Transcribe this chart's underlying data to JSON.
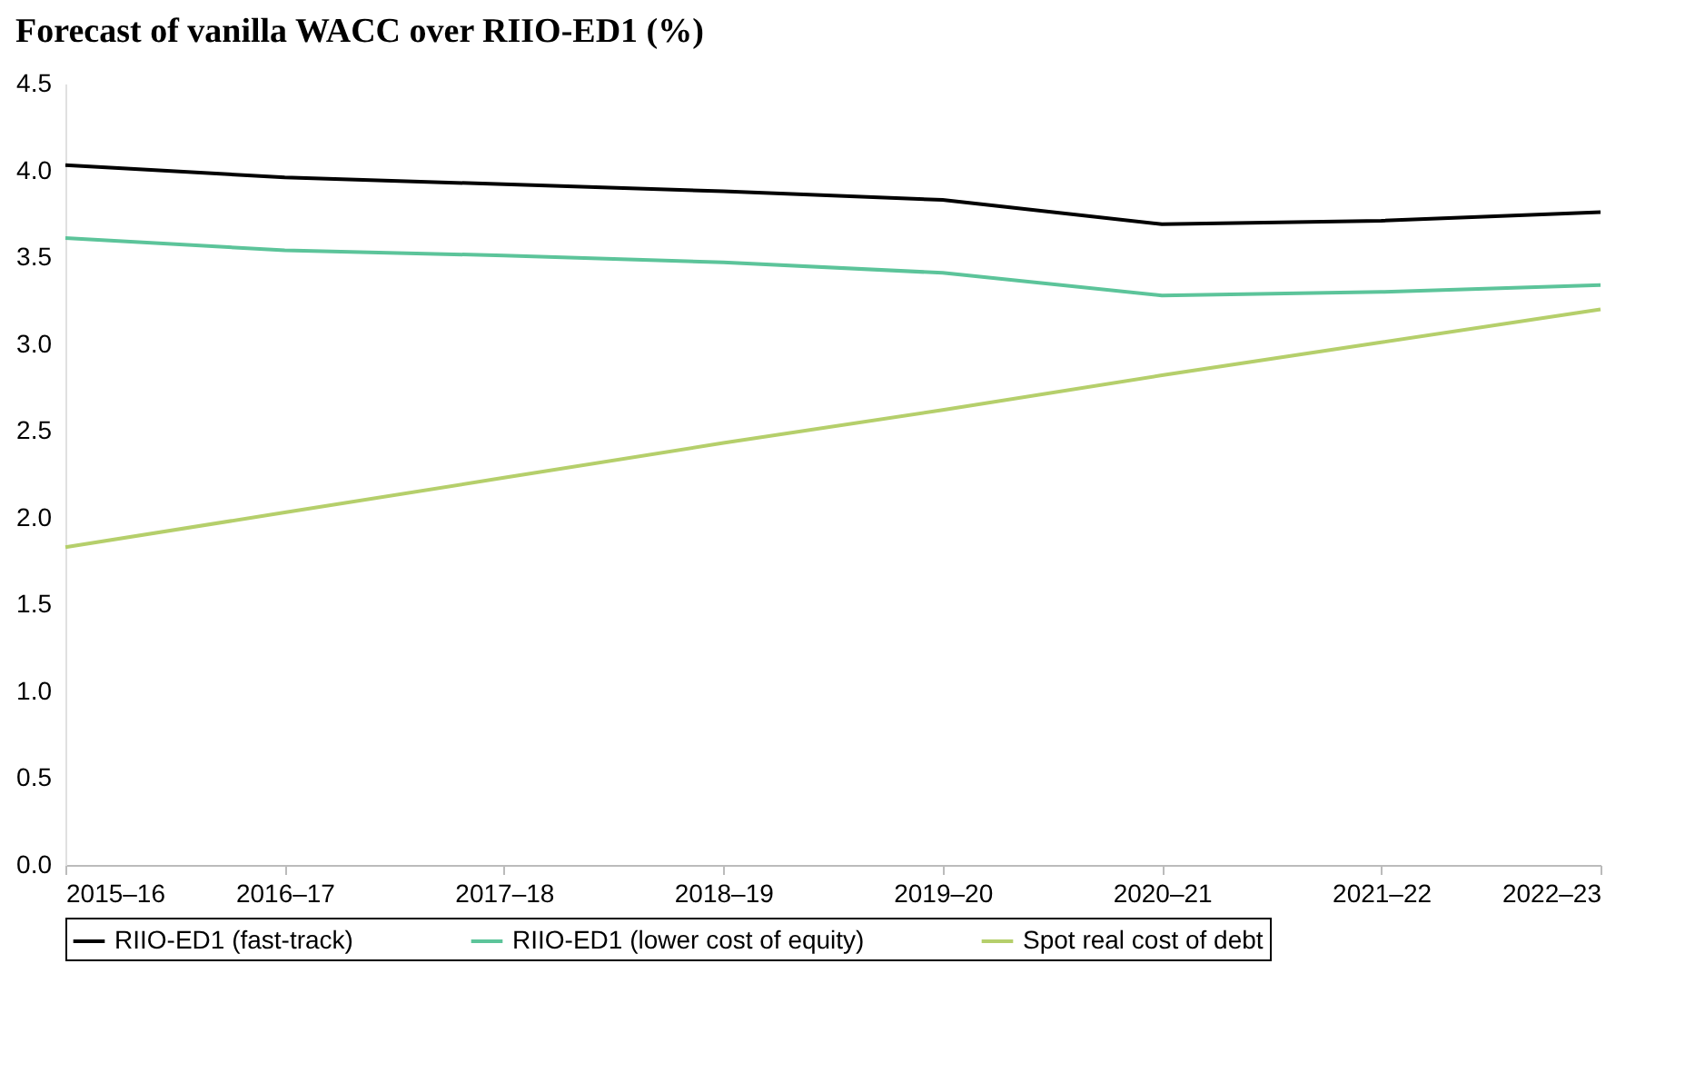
{
  "chart_data": {
    "type": "line",
    "title": "Forecast of vanilla WACC over RIIO-ED1 (%)",
    "categories": [
      "2015–16",
      "2016–17",
      "2017–18",
      "2018–19",
      "2019–20",
      "2020–21",
      "2021–22",
      "2022–23"
    ],
    "series": [
      {
        "name": "RIIO-ED1 (fast-track)",
        "color": "#000000",
        "values": [
          4.03,
          3.96,
          3.92,
          3.88,
          3.83,
          3.69,
          3.71,
          3.76
        ]
      },
      {
        "name": "RIIO-ED1 (lower cost of equity)",
        "color": "#5cc49a",
        "values": [
          3.61,
          3.54,
          3.51,
          3.47,
          3.41,
          3.28,
          3.3,
          3.34
        ]
      },
      {
        "name": "Spot real cost of debt",
        "color": "#b5cf6b",
        "values": [
          1.83,
          2.03,
          2.23,
          2.43,
          2.62,
          2.82,
          3.01,
          3.2
        ]
      }
    ],
    "ylim": [
      0,
      4.5
    ],
    "yticks": [
      {
        "value": 0,
        "label": "0.0"
      },
      0.5,
      {
        "value": 1,
        "label": "1.0"
      },
      1.5,
      {
        "value": 2,
        "label": "2.0"
      },
      2.5,
      {
        "value": 3,
        "label": "3.0"
      },
      3.5,
      {
        "value": 4,
        "label": "4.0"
      },
      4.5
    ],
    "grid": false,
    "legend": "bottom",
    "marker": "none",
    "line_style": "solid"
  }
}
